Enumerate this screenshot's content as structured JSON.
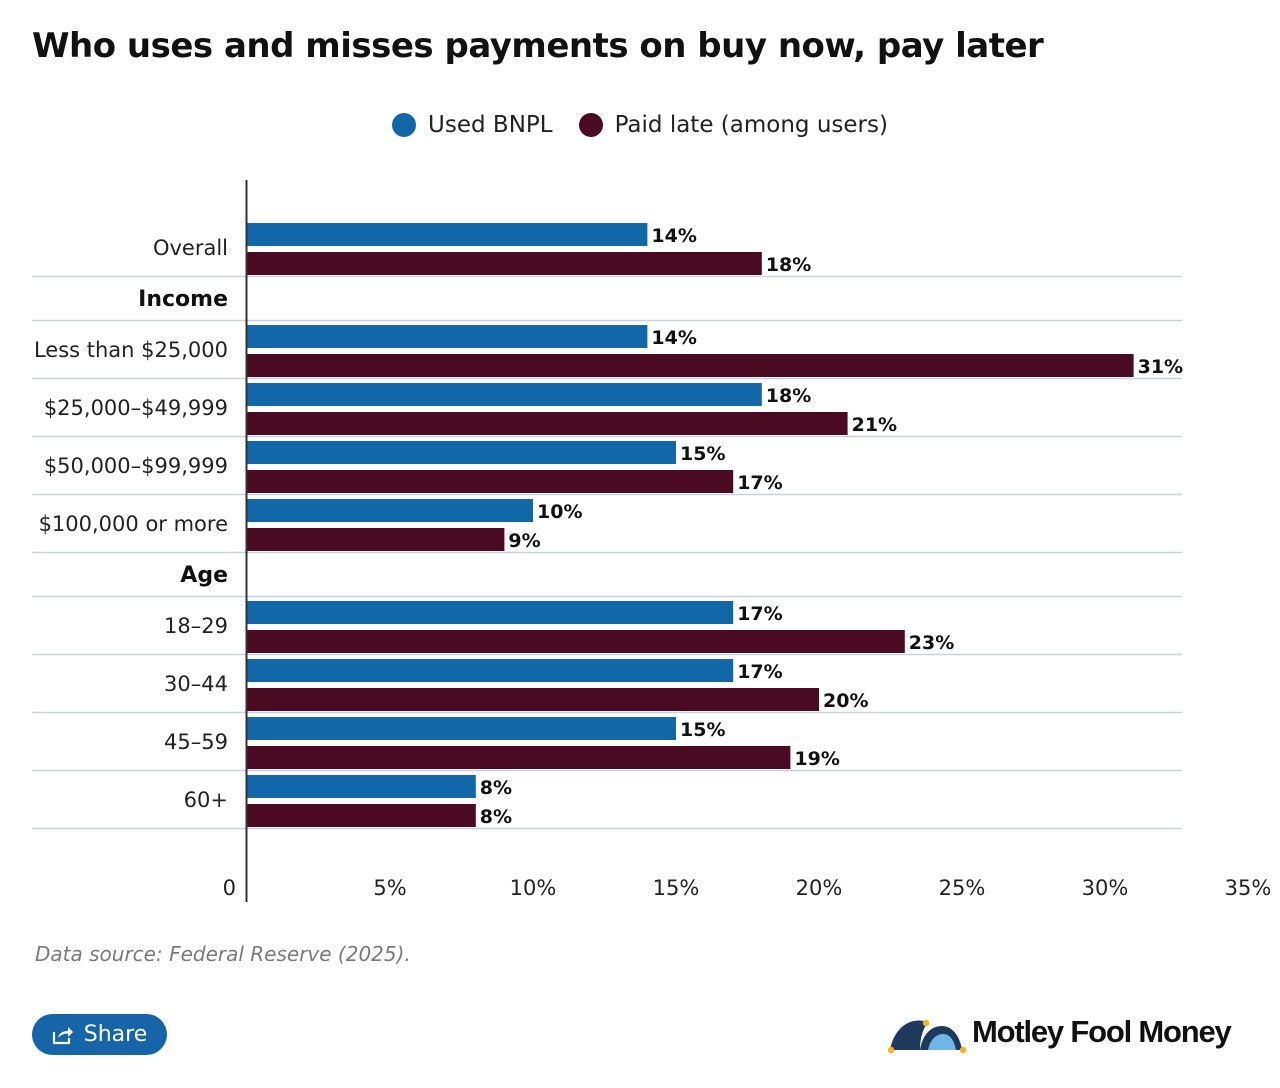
{
  "title": "Who uses and misses payments on buy now, pay later",
  "legend": [
    {
      "label": "Used BNPL",
      "color": "#1267a8"
    },
    {
      "label": "Paid late (among users)",
      "color": "#4a0a22"
    }
  ],
  "chart_data": {
    "type": "bar",
    "orientation": "horizontal",
    "title": "Who uses and misses payments on buy now, pay later",
    "xlim": [
      0,
      35
    ],
    "x_ticks": [
      0,
      5,
      10,
      15,
      20,
      25,
      30,
      35
    ],
    "x_tick_labels": [
      "0",
      "5%",
      "10%",
      "15%",
      "20%",
      "25%",
      "30%",
      "35%"
    ],
    "series": [
      {
        "name": "Used BNPL",
        "color": "#1267a8"
      },
      {
        "name": "Paid late (among users)",
        "color": "#4a0a22"
      }
    ],
    "rows": [
      {
        "kind": "category",
        "label": "Overall",
        "values": [
          14,
          18
        ]
      },
      {
        "kind": "group",
        "label": "Income"
      },
      {
        "kind": "category",
        "label": "Less than $25,000",
        "values": [
          14,
          31
        ]
      },
      {
        "kind": "category",
        "label": "$25,000–$49,999",
        "values": [
          18,
          21
        ]
      },
      {
        "kind": "category",
        "label": "$50,000–$99,999",
        "values": [
          15,
          17
        ]
      },
      {
        "kind": "category",
        "label": "$100,000 or more",
        "values": [
          10,
          9
        ]
      },
      {
        "kind": "group",
        "label": "Age"
      },
      {
        "kind": "category",
        "label": "18–29",
        "values": [
          17,
          23
        ]
      },
      {
        "kind": "category",
        "label": "30–44",
        "values": [
          17,
          20
        ]
      },
      {
        "kind": "category",
        "label": "45–59",
        "values": [
          15,
          19
        ]
      },
      {
        "kind": "category",
        "label": "60+",
        "values": [
          8,
          8
        ]
      }
    ],
    "value_suffix": "%"
  },
  "source": "Data source: Federal Reserve (2025).",
  "share": {
    "label": "Share",
    "icon": "share-icon"
  },
  "brand": {
    "name": "Motley Fool Money",
    "icon": "jester-cap-icon"
  }
}
